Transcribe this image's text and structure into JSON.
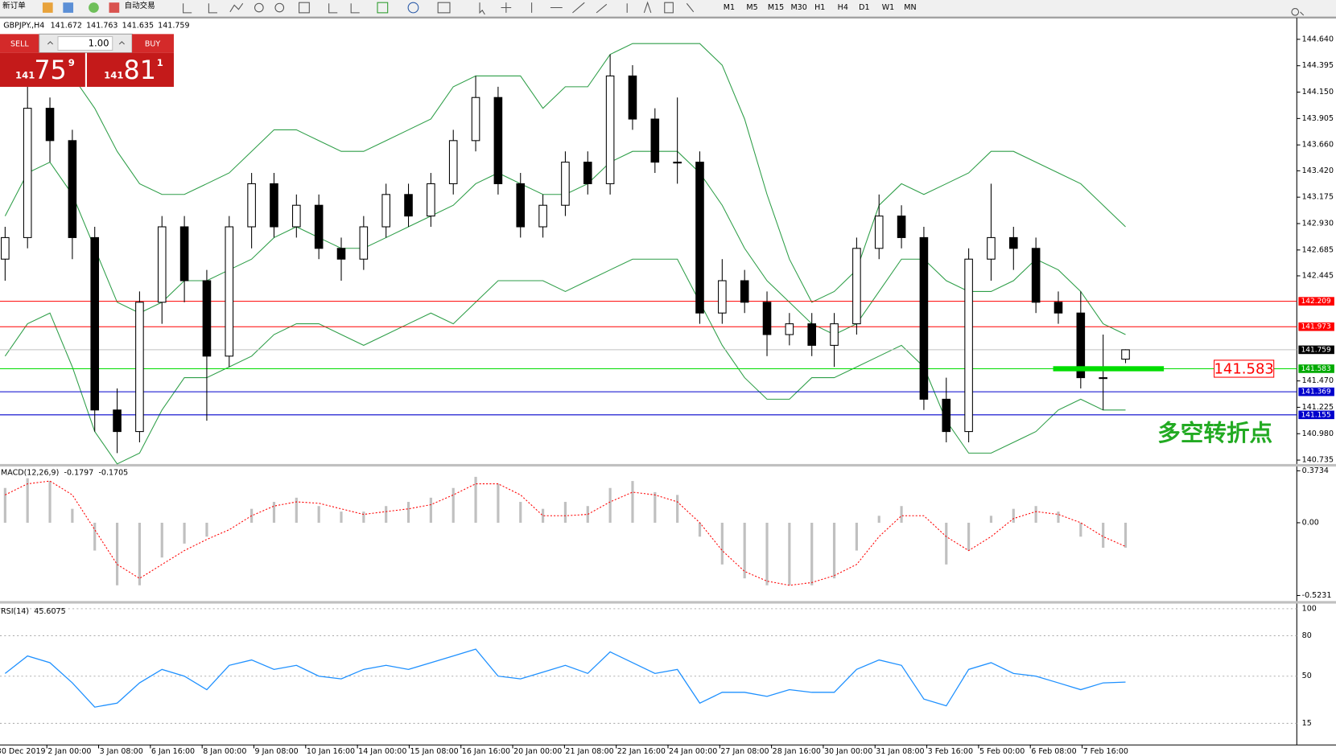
{
  "toolbar": {
    "new_order": "新订单",
    "auto_trading": "自动交易",
    "timeframes": [
      "M1",
      "M5",
      "M15",
      "M30",
      "H1",
      "H4",
      "D1",
      "W1",
      "MN"
    ]
  },
  "chart_header": {
    "symbol": "GBPJPY.,H4"
  },
  "trade_panel": {
    "sell": "SELL",
    "buy": "BUY",
    "lots": "1.00",
    "bid": {
      "big": "141",
      "pips": "75",
      "point": "9"
    },
    "ask": {
      "big": "141",
      "pips": "81",
      "point": "1"
    }
  },
  "chart_data": [
    {
      "type": "candlestick",
      "open": [
        142.6,
        142.8,
        144.0,
        143.7,
        142.8,
        141.2,
        141.0,
        142.2,
        142.9,
        142.4,
        141.7,
        142.9,
        143.3,
        142.9,
        143.1,
        142.7,
        142.6,
        142.9,
        143.2,
        143.0,
        143.3,
        143.7,
        144.1,
        143.3,
        142.9,
        143.1,
        143.5,
        143.3,
        144.3,
        143.9,
        143.5,
        143.5,
        142.1,
        142.4,
        142.2,
        141.9,
        142.0,
        141.8,
        142.0,
        142.7,
        143.0,
        142.8,
        141.3,
        141.0,
        142.6,
        142.8,
        142.7,
        142.2,
        142.1,
        141.5,
        141.672
      ],
      "high": [
        142.9,
        144.2,
        144.1,
        143.8,
        142.9,
        141.4,
        142.3,
        143.0,
        143.0,
        142.5,
        143.0,
        143.4,
        143.4,
        143.2,
        143.2,
        142.8,
        143.0,
        143.3,
        143.3,
        143.4,
        143.8,
        144.3,
        144.2,
        143.4,
        143.2,
        143.6,
        143.6,
        144.5,
        144.4,
        144.0,
        144.1,
        143.6,
        142.6,
        142.5,
        142.3,
        142.1,
        142.1,
        142.1,
        142.8,
        143.2,
        143.1,
        142.9,
        141.5,
        142.7,
        143.3,
        142.9,
        142.8,
        142.3,
        142.3,
        141.9,
        141.763
      ],
      "low": [
        142.4,
        142.7,
        143.5,
        142.6,
        141.0,
        140.8,
        140.9,
        142.0,
        142.2,
        141.1,
        141.6,
        142.7,
        142.8,
        142.8,
        142.6,
        142.4,
        142.5,
        142.8,
        142.9,
        142.9,
        143.2,
        143.6,
        143.2,
        142.8,
        142.8,
        143.0,
        143.2,
        143.2,
        143.8,
        143.4,
        143.3,
        142.0,
        142.0,
        142.1,
        141.7,
        141.8,
        141.7,
        141.6,
        141.9,
        142.6,
        142.7,
        141.2,
        140.9,
        140.9,
        142.4,
        142.5,
        142.1,
        142.0,
        141.4,
        141.2,
        141.635
      ],
      "close": [
        142.8,
        144.0,
        143.7,
        142.8,
        141.2,
        141.0,
        142.2,
        142.9,
        142.4,
        141.7,
        142.9,
        143.3,
        142.9,
        143.1,
        142.7,
        142.6,
        142.9,
        143.2,
        143.0,
        143.3,
        143.7,
        144.1,
        143.3,
        142.9,
        143.1,
        143.5,
        143.3,
        144.3,
        143.9,
        143.5,
        143.5,
        142.1,
        142.4,
        142.2,
        141.9,
        142.0,
        141.8,
        142.0,
        142.7,
        143.0,
        142.8,
        141.3,
        141.0,
        142.6,
        142.8,
        142.7,
        142.2,
        142.1,
        141.5,
        141.5,
        141.759
      ],
      "bollinger": {
        "color": "#2e9e48",
        "upper": [
          144.3,
          144.5,
          144.5,
          144.3,
          144.0,
          143.6,
          143.3,
          143.2,
          143.2,
          143.3,
          143.4,
          143.6,
          143.8,
          143.8,
          143.7,
          143.6,
          143.6,
          143.7,
          143.8,
          143.9,
          144.2,
          144.3,
          144.3,
          144.3,
          144.0,
          144.2,
          144.2,
          144.5,
          144.6,
          144.6,
          144.6,
          144.6,
          144.4,
          143.9,
          143.2,
          142.6,
          142.2,
          142.3,
          142.5,
          143.1,
          143.3,
          143.2,
          143.3,
          143.4,
          143.6,
          143.6,
          143.5,
          143.4,
          143.3,
          143.1,
          142.9
        ],
        "middle": [
          143.0,
          143.4,
          143.5,
          143.2,
          142.7,
          142.2,
          142.1,
          142.2,
          142.4,
          142.4,
          142.5,
          142.6,
          142.8,
          142.9,
          142.8,
          142.7,
          142.7,
          142.8,
          142.9,
          143.0,
          143.1,
          143.3,
          143.4,
          143.3,
          143.2,
          143.2,
          143.3,
          143.5,
          143.6,
          143.6,
          143.6,
          143.4,
          143.1,
          142.7,
          142.4,
          142.2,
          142.0,
          141.9,
          142.0,
          142.3,
          142.6,
          142.6,
          142.4,
          142.3,
          142.3,
          142.4,
          142.6,
          142.5,
          142.3,
          142.0,
          141.9
        ],
        "lower": [
          141.7,
          142.0,
          142.1,
          141.6,
          141.0,
          140.7,
          140.8,
          141.2,
          141.5,
          141.5,
          141.6,
          141.7,
          141.9,
          142.0,
          142.0,
          141.9,
          141.8,
          141.9,
          142.0,
          142.1,
          142.0,
          142.2,
          142.4,
          142.4,
          142.4,
          142.3,
          142.4,
          142.5,
          142.6,
          142.6,
          142.6,
          142.2,
          141.8,
          141.5,
          141.3,
          141.3,
          141.5,
          141.5,
          141.6,
          141.7,
          141.8,
          141.6,
          141.1,
          140.8,
          140.8,
          140.9,
          141.0,
          141.2,
          141.3,
          141.2,
          141.2
        ]
      },
      "hlines": [
        {
          "value": 142.209,
          "color": "#ff0000",
          "label_bg": "#ff0000"
        },
        {
          "value": 141.973,
          "color": "#ff0000",
          "label_bg": "#ff0000"
        },
        {
          "value": 141.759,
          "color": "#c0c0c0",
          "label_bg": "#000000"
        },
        {
          "value": 141.583,
          "color": "#00dd00",
          "label_bg": "#00aa00"
        },
        {
          "value": 141.369,
          "color": "#0000cc",
          "label_bg": "#0000cc"
        },
        {
          "value": 141.155,
          "color": "#0000cc",
          "label_bg": "#0000cc"
        }
      ],
      "annotation": {
        "text": "多空转折点",
        "level": 141.583,
        "color": "#00dd00"
      },
      "ylim": [
        140.699,
        144.831
      ],
      "yticks": [
        {
          "value": 144.64,
          "label": "144.640"
        },
        {
          "value": 144.395,
          "label": "144.395"
        },
        {
          "value": 144.15,
          "label": "144.150"
        },
        {
          "value": 143.905,
          "label": "143.905"
        },
        {
          "value": 143.66,
          "label": "143.660"
        },
        {
          "value": 143.42,
          "label": "143.420"
        },
        {
          "value": 143.175,
          "label": "143.175"
        },
        {
          "value": 142.93,
          "label": "142.930"
        },
        {
          "value": 142.685,
          "label": "142.685"
        },
        {
          "value": 142.445,
          "label": "142.445"
        },
        {
          "value": 141.47,
          "label": "141.470"
        },
        {
          "value": 141.225,
          "label": "141.225"
        },
        {
          "value": 140.98,
          "label": "140.980"
        },
        {
          "value": 140.735,
          "label": "140.735"
        }
      ],
      "time_labels": [
        "30 Dec 2019",
        "2 Jan 00:00",
        "3 Jan 08:00",
        "6 Jan 16:00",
        "8 Jan 00:00",
        "9 Jan 08:00",
        "10 Jan 16:00",
        "14 Jan 00:00",
        "15 Jan 08:00",
        "16 Jan 16:00",
        "20 Jan 00:00",
        "21 Jan 08:00",
        "22 Jan 16:00",
        "24 Jan 00:00",
        "27 Jan 08:00",
        "28 Jan 16:00",
        "30 Jan 00:00",
        "31 Jan 08:00",
        "3 Feb 16:00",
        "5 Feb 00:00",
        "6 Feb 08:00",
        "7 Feb 16:00"
      ]
    },
    {
      "type": "macd",
      "title": "MACD(12,26,9)",
      "histogram": [
        0.25,
        0.32,
        0.3,
        0.1,
        -0.2,
        -0.45,
        -0.45,
        -0.25,
        -0.15,
        -0.1,
        0.0,
        0.1,
        0.15,
        0.18,
        0.12,
        0.08,
        0.08,
        0.12,
        0.15,
        0.18,
        0.25,
        0.33,
        0.28,
        0.15,
        0.1,
        0.15,
        0.12,
        0.25,
        0.3,
        0.22,
        0.2,
        -0.1,
        -0.3,
        -0.4,
        -0.45,
        -0.45,
        -0.45,
        -0.4,
        -0.2,
        0.05,
        0.12,
        0.0,
        -0.3,
        -0.2,
        0.05,
        0.1,
        0.12,
        0.08,
        -0.1,
        -0.18,
        -0.1797
      ],
      "signal": [
        0.2,
        0.28,
        0.3,
        0.2,
        -0.05,
        -0.3,
        -0.4,
        -0.3,
        -0.2,
        -0.12,
        -0.05,
        0.05,
        0.12,
        0.15,
        0.14,
        0.1,
        0.06,
        0.08,
        0.1,
        0.13,
        0.2,
        0.28,
        0.28,
        0.2,
        0.05,
        0.05,
        0.06,
        0.15,
        0.22,
        0.2,
        0.15,
        0.0,
        -0.2,
        -0.35,
        -0.42,
        -0.45,
        -0.43,
        -0.38,
        -0.3,
        -0.1,
        0.05,
        0.05,
        -0.1,
        -0.2,
        -0.1,
        0.03,
        0.08,
        0.06,
        0.0,
        -0.1,
        -0.1705
      ],
      "histogram_color": "#c0c0c0",
      "signal_color": "#ff0000",
      "ylim": [
        -0.563,
        0.404
      ],
      "yticks": [
        0.3734,
        {
          "value": 0,
          "label": "0.00"
        },
        -0.5231
      ]
    },
    {
      "type": "line",
      "title": "RSI(14)",
      "values": [
        52,
        65,
        60,
        45,
        27,
        30,
        45,
        55,
        50,
        40,
        58,
        62,
        55,
        58,
        50,
        48,
        55,
        58,
        55,
        60,
        65,
        70,
        50,
        48,
        53,
        58,
        52,
        68,
        60,
        52,
        55,
        30,
        38,
        38,
        35,
        40,
        38,
        38,
        55,
        62,
        58,
        33,
        28,
        55,
        60,
        52,
        50,
        45,
        40,
        45,
        45.6075
      ],
      "color": "#1e90ff",
      "ylim": [
        -1,
        103.8
      ],
      "yticks": [
        100,
        80,
        50,
        15
      ]
    }
  ]
}
